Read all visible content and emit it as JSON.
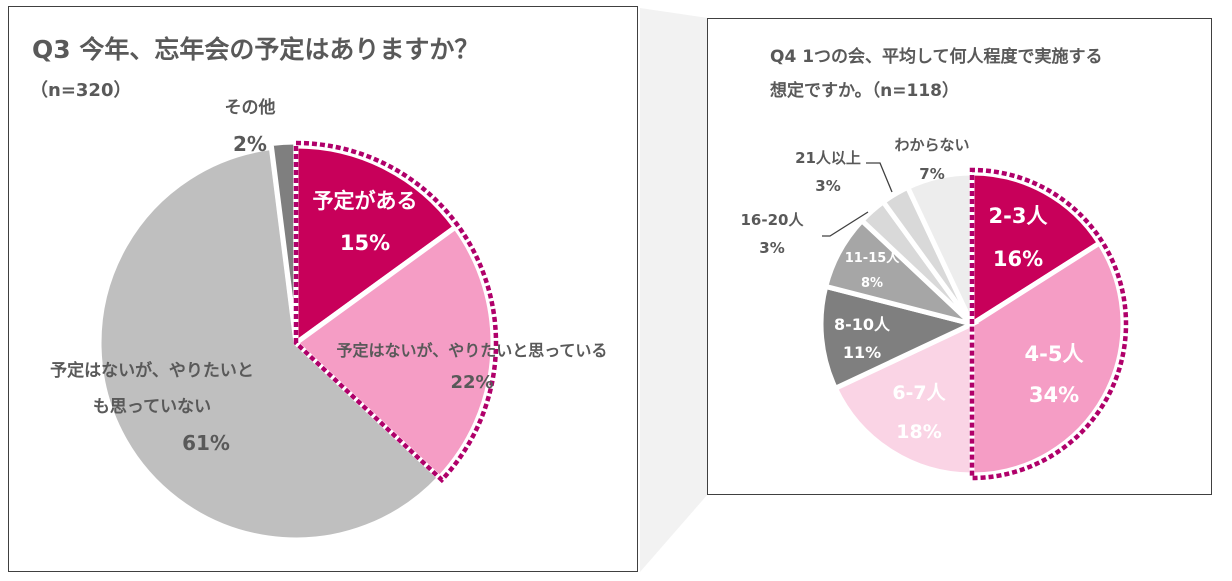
{
  "colors": {
    "magenta": "#C8005A",
    "pink": "#F59DC5",
    "lightpink": "#FAD4E5",
    "gray": "#BFBFBF",
    "darkgray": "#7F7F7F",
    "midgray": "#A6A6A6",
    "lightgray": "#D9D9D9",
    "palegray": "#EDEDED",
    "dash": "#B0006A",
    "text": "#595959",
    "white": "#FFFFFF"
  },
  "chart_data": [
    {
      "type": "pie",
      "title": "Q3 今年、忘年会の予定はありますか？",
      "subtitle": "（n=320）",
      "slices": [
        {
          "label": "予定がある",
          "value": 15,
          "value_label": "15%",
          "color": "magenta",
          "label_color": "white"
        },
        {
          "label": "予定はないが、やりたいと思っている",
          "value": 22,
          "value_label": "22%",
          "color": "pink",
          "label_color": "text"
        },
        {
          "label": "予定はないが、やりたいとも思っていない",
          "value": 61,
          "value_label": "61%",
          "color": "gray",
          "label_color": "text"
        },
        {
          "label": "その他",
          "value": 2,
          "value_label": "2%",
          "color": "darkgray",
          "label_color": "text"
        }
      ]
    },
    {
      "type": "pie",
      "title": "Q4 1つの会、平均して何人程度で実施する想定ですか。（n=118）",
      "title_lines": [
        "Q4 1つの会、平均して何人程度で実施する",
        "想定ですか。（n=118）"
      ],
      "slices": [
        {
          "label": "2-3人",
          "value": 16,
          "value_label": "16%",
          "color": "magenta",
          "label_color": "white"
        },
        {
          "label": "4-5人",
          "value": 34,
          "value_label": "34%",
          "color": "pink",
          "label_color": "white"
        },
        {
          "label": "6-7人",
          "value": 18,
          "value_label": "18%",
          "color": "lightpink",
          "label_color": "white"
        },
        {
          "label": "8-10人",
          "value": 11,
          "value_label": "11%",
          "color": "darkgray",
          "label_color": "white"
        },
        {
          "label": "11-15人",
          "value": 8,
          "value_label": "8%",
          "color": "midgray",
          "label_color": "white"
        },
        {
          "label": "16-20人",
          "value": 3,
          "value_label": "3%",
          "color": "lightgray",
          "label_color": "text"
        },
        {
          "label": "21人以上",
          "value": 3,
          "value_label": "3%",
          "color": "lightgray",
          "label_color": "text"
        },
        {
          "label": "わからない",
          "value": 7,
          "value_label": "7%",
          "color": "palegray",
          "label_color": "text"
        }
      ]
    }
  ]
}
